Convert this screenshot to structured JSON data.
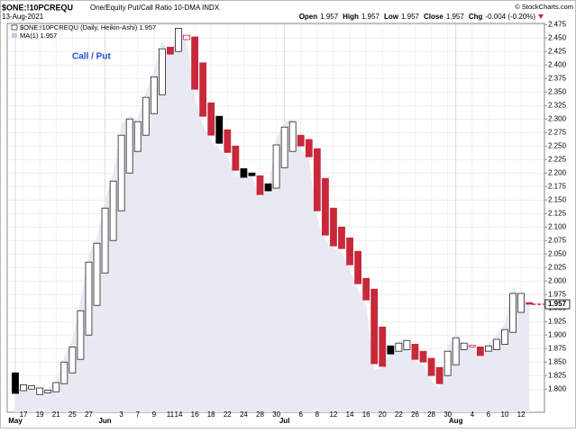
{
  "chart_data": {
    "type": "candlestick",
    "title": "$ONE:!10PCREQU",
    "subtitle": "One/Equity Put/Call Ratio 10-DMA  INDX",
    "date": "13-Aug-2021",
    "watermark": "© StockCharts.com",
    "quote": [
      {
        "label": "Open",
        "value": "1.957"
      },
      {
        "label": "High",
        "value": "1.957"
      },
      {
        "label": "Low",
        "value": "1.957"
      },
      {
        "label": "Close",
        "value": "1.957"
      },
      {
        "label": "Chg",
        "value": "-0.004 (-0.20%)"
      }
    ],
    "legend": [
      "$ONE:!10PCREQU (Daily, Heikin-Ashi) 1.957",
      "MA(1) 1.957"
    ],
    "annotation": "Call / Put",
    "last_value": 1.957,
    "grid": true,
    "categories": [
      "May",
      "17",
      null,
      "19",
      null,
      "21",
      null,
      "25",
      null,
      "27",
      null,
      "Jun",
      null,
      "3",
      null,
      "7",
      null,
      "9",
      null,
      "11",
      "14",
      null,
      "16",
      null,
      "18",
      null,
      "22",
      null,
      "24",
      null,
      "28",
      null,
      "30",
      "Jul",
      null,
      "6",
      null,
      "8",
      null,
      "12",
      null,
      "14",
      null,
      "16",
      null,
      "20",
      null,
      "22",
      null,
      "26",
      null,
      "28",
      null,
      "30",
      "Aug",
      null,
      "4",
      null,
      "6",
      null,
      "10",
      null,
      "12",
      null
    ],
    "open": [
      1.83,
      1.797,
      1.8,
      1.802,
      1.793,
      1.795,
      1.81,
      1.83,
      1.855,
      1.9,
      1.955,
      2.015,
      2.075,
      2.13,
      2.2,
      2.24,
      2.27,
      2.31,
      2.345,
      2.433,
      2.425,
      2.447,
      2.452,
      2.404,
      2.33,
      2.305,
      2.28,
      2.25,
      2.208,
      2.2,
      2.195,
      2.18,
      2.172,
      2.21,
      2.24,
      2.27,
      2.262,
      2.245,
      2.19,
      2.135,
      2.1,
      2.08,
      2.055,
      2.005,
      1.985,
      1.915,
      1.88,
      1.87,
      1.873,
      1.883,
      1.87,
      1.857,
      1.84,
      1.825,
      1.845,
      1.873,
      1.878,
      1.878,
      1.87,
      1.873,
      1.883,
      1.905,
      1.942,
      1.96
    ],
    "close": [
      1.792,
      1.808,
      1.806,
      1.79,
      1.798,
      1.812,
      1.85,
      1.878,
      1.945,
      2.035,
      2.07,
      2.135,
      2.185,
      2.27,
      2.3,
      2.295,
      2.34,
      2.378,
      2.43,
      2.42,
      2.468,
      2.455,
      2.355,
      2.305,
      2.27,
      2.255,
      2.238,
      2.205,
      2.192,
      2.195,
      2.16,
      2.167,
      2.252,
      2.285,
      2.295,
      2.25,
      2.23,
      2.13,
      2.085,
      2.065,
      2.06,
      2.03,
      1.995,
      1.965,
      1.847,
      1.842,
      1.865,
      1.885,
      1.89,
      1.855,
      1.85,
      1.825,
      1.81,
      1.87,
      1.895,
      1.885,
      1.881,
      1.862,
      1.88,
      1.892,
      1.91,
      1.977,
      1.977,
      1.957
    ],
    "styles": [
      "filled-black",
      "hollow-black",
      "hollow-black",
      "hollow-black",
      "hollow-black",
      "hollow-black",
      "hollow-black",
      "hollow-black",
      "hollow-black",
      "hollow-black",
      "hollow-black",
      "hollow-black",
      "hollow-black",
      "hollow-black",
      "hollow-black",
      "hollow-black",
      "hollow-black",
      "hollow-black",
      "hollow-black",
      "filled-red",
      "hollow-black",
      "hollow-red",
      "filled-red",
      "filled-red",
      "filled-red",
      "filled-black",
      "filled-red",
      "filled-red",
      "filled-black",
      "filled-black",
      "filled-red",
      "filled-black",
      "hollow-black",
      "hollow-black",
      "hollow-black",
      "filled-red",
      "filled-red",
      "filled-red",
      "filled-red",
      "filled-red",
      "filled-red",
      "filled-red",
      "filled-red",
      "filled-red",
      "filled-red",
      "filled-red",
      "filled-black",
      "hollow-black",
      "hollow-black",
      "filled-red",
      "filled-red",
      "filled-red",
      "filled-red",
      "hollow-black",
      "hollow-black",
      "hollow-black",
      "hollow-red",
      "filled-red",
      "hollow-black",
      "hollow-black",
      "hollow-black",
      "hollow-black",
      "hollow-black",
      "filled-red"
    ],
    "ma": [
      1.795,
      1.805,
      1.8,
      1.79,
      1.8,
      1.815,
      1.86,
      1.89,
      1.965,
      2.05,
      2.08,
      2.15,
      2.2,
      2.29,
      2.305,
      2.3,
      2.35,
      2.39,
      2.445,
      2.42,
      2.47,
      2.45,
      2.34,
      2.29,
      2.26,
      2.245,
      2.23,
      2.195,
      2.19,
      2.195,
      2.155,
      2.17,
      2.265,
      2.295,
      2.3,
      2.245,
      2.225,
      2.115,
      2.075,
      2.06,
      2.055,
      2.02,
      1.985,
      1.955,
      1.835,
      1.84,
      1.87,
      1.89,
      1.892,
      1.85,
      1.845,
      1.815,
      1.8,
      1.88,
      1.9,
      1.885,
      1.88,
      1.86,
      1.885,
      1.9,
      1.92,
      1.99,
      1.97,
      1.957
    ],
    "ylim": [
      1.757,
      2.477
    ],
    "yticks": [
      {
        "value": 1.8,
        "label": "1.800"
      },
      {
        "value": 1.825,
        "label": "1.825"
      },
      {
        "value": 1.85,
        "label": "1.850"
      },
      {
        "value": 1.875,
        "label": "1.875"
      },
      {
        "value": 1.9,
        "label": "1.900"
      },
      {
        "value": 1.925,
        "label": "1.925"
      },
      {
        "value": 1.95,
        "label": "1.950"
      },
      {
        "value": 1.975,
        "label": "1.975"
      },
      {
        "value": 2.0,
        "label": "2.000"
      },
      {
        "value": 2.025,
        "label": "2.025"
      },
      {
        "value": 2.05,
        "label": "2.050"
      },
      {
        "value": 2.075,
        "label": "2.075"
      },
      {
        "value": 2.1,
        "label": "2.100"
      },
      {
        "value": 2.125,
        "label": "2.125"
      },
      {
        "value": 2.15,
        "label": "2.150"
      },
      {
        "value": 2.175,
        "label": "2.175"
      },
      {
        "value": 2.2,
        "label": "2.200"
      },
      {
        "value": 2.225,
        "label": "2.225"
      },
      {
        "value": 2.25,
        "label": "2.250"
      },
      {
        "value": 2.275,
        "label": "2.275"
      },
      {
        "value": 2.3,
        "label": "2.300"
      },
      {
        "value": 2.325,
        "label": "2.325"
      },
      {
        "value": 2.35,
        "label": "2.350"
      },
      {
        "value": 2.375,
        "label": "2.375"
      },
      {
        "value": 2.4,
        "label": "2.400"
      },
      {
        "value": 2.425,
        "label": "2.425"
      },
      {
        "value": 2.45,
        "label": "2.450"
      },
      {
        "value": 2.475,
        "label": "2.475"
      }
    ]
  }
}
